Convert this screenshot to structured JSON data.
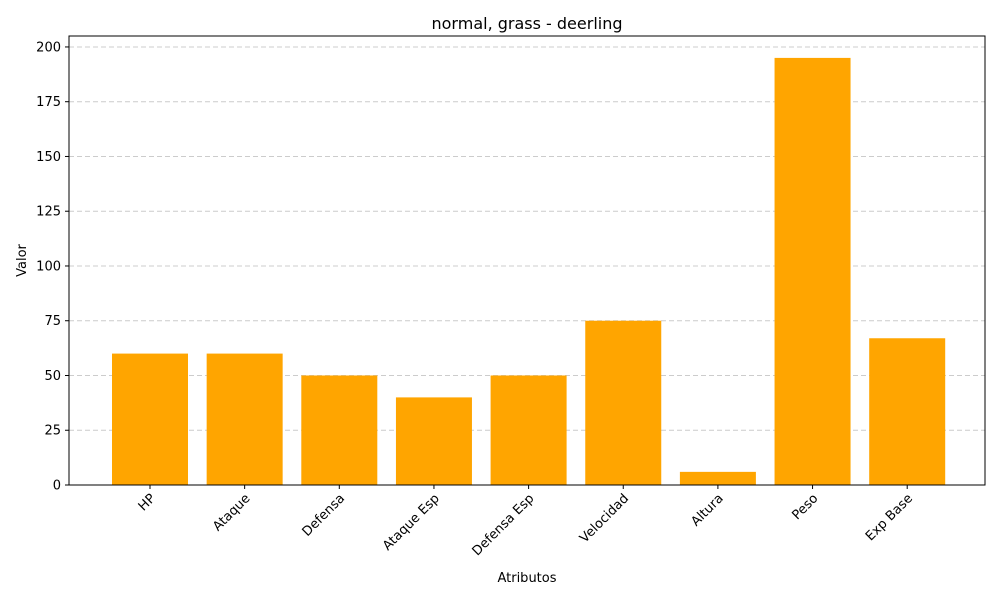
{
  "chart_data": {
    "type": "bar",
    "title": "normal, grass - deerling",
    "xlabel": "Atributos",
    "ylabel": "Valor",
    "categories": [
      "HP",
      "Ataque",
      "Defensa",
      "Ataque Esp",
      "Defensa Esp",
      "Velocidad",
      "Altura",
      "Peso",
      "Exp Base"
    ],
    "values": [
      60,
      60,
      50,
      40,
      50,
      75,
      6,
      195,
      67
    ],
    "ylim": [
      0,
      205
    ],
    "yticks": [
      0,
      25,
      50,
      75,
      100,
      125,
      150,
      175,
      200
    ],
    "grid": "y-dashed",
    "bar_color": "#ffa500",
    "grid_color": "#cccccc"
  }
}
